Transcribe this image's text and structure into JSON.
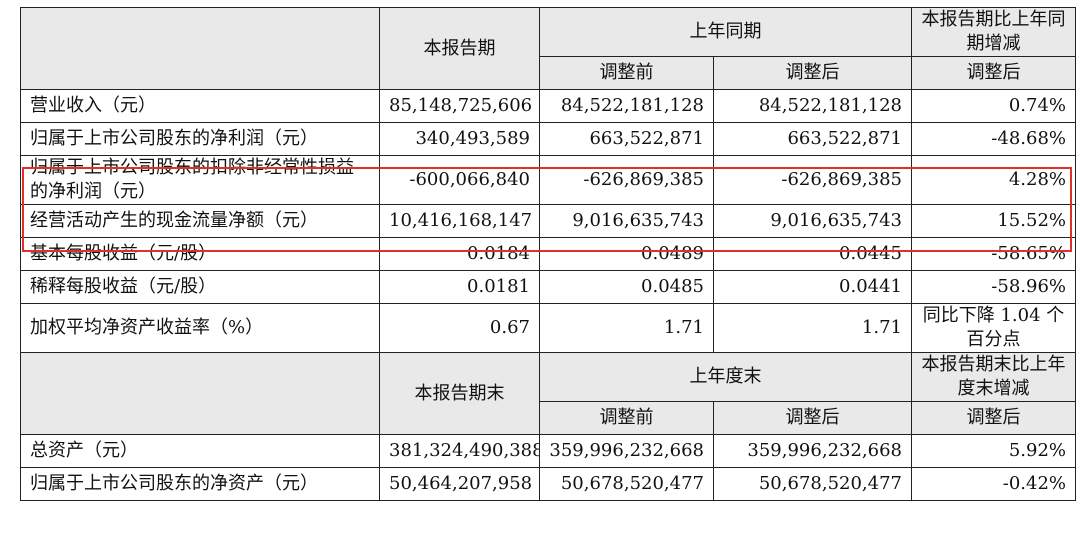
{
  "table": {
    "header1": {
      "current": "本报告期",
      "prior_group": "上年同期",
      "change": "本报告期比上年同期增减",
      "before": "调整前",
      "after": "调整后",
      "change_sub": "调整后"
    },
    "rows1": [
      {
        "label": "营业收入（元）",
        "current": "85,148,725,606",
        "before": "84,522,181,128",
        "after": "84,522,181,128",
        "change": "0.74%"
      },
      {
        "label": "归属于上市公司股东的净利润（元）",
        "current": "340,493,589",
        "before": "663,522,871",
        "after": "663,522,871",
        "change": "-48.68%"
      },
      {
        "label": "归属于上市公司股东的扣除非经常性损益的净利润（元）",
        "current": "-600,066,840",
        "before": "-626,869,385",
        "after": "-626,869,385",
        "change": "4.28%"
      },
      {
        "label": "经营活动产生的现金流量净额（元）",
        "current": "10,416,168,147",
        "before": "9,016,635,743",
        "after": "9,016,635,743",
        "change": "15.52%"
      },
      {
        "label": "基本每股收益（元/股）",
        "current": "0.0184",
        "before": "0.0489",
        "after": "0.0445",
        "change": "-58.65%"
      },
      {
        "label": "稀释每股收益（元/股）",
        "current": "0.0181",
        "before": "0.0485",
        "after": "0.0441",
        "change": "-58.96%"
      },
      {
        "label": "加权平均净资产收益率（%）",
        "current": "0.67",
        "before": "1.71",
        "after": "1.71",
        "change": "同比下降 1.04 个百分点"
      }
    ],
    "header2": {
      "current": "本报告期末",
      "prior_group": "上年度末",
      "change": "本报告期末比上年度末增减",
      "before": "调整前",
      "after": "调整后",
      "change_sub": "调整后"
    },
    "rows2": [
      {
        "label": "总资产（元）",
        "current": "381,324,490,388",
        "before": "359,996,232,668",
        "after": "359,996,232,668",
        "change": "5.92%"
      },
      {
        "label": "归属于上市公司股东的净资产（元）",
        "current": "50,464,207,958",
        "before": "50,678,520,477",
        "after": "50,678,520,477",
        "change": "-0.42%"
      }
    ]
  }
}
